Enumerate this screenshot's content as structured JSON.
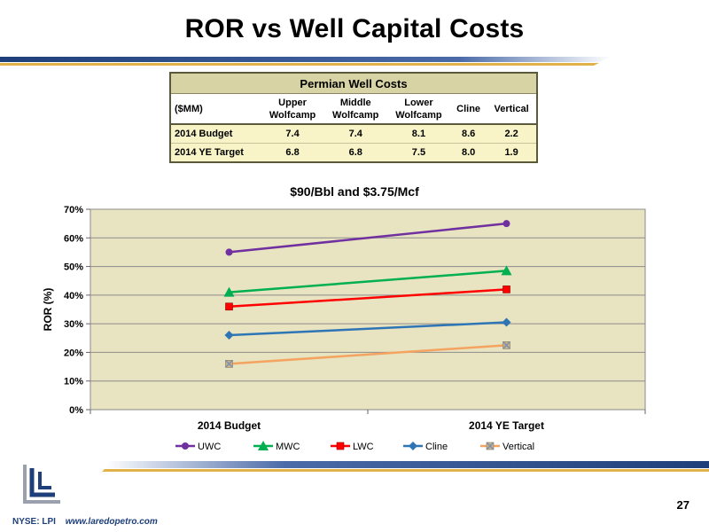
{
  "page": {
    "title": "ROR vs Well Capital Costs",
    "page_number": "27",
    "footer_ticker": "NYSE: LPI",
    "footer_url": "www.laredopetro.com"
  },
  "table": {
    "caption": "Permian Well Costs",
    "unit_label": "($MM)",
    "columns": [
      {
        "line1": "Upper",
        "line2": "Wolfcamp"
      },
      {
        "line1": "Middle",
        "line2": "Wolfcamp"
      },
      {
        "line1": "Lower",
        "line2": "Wolfcamp"
      },
      {
        "line1": "Cline",
        "line2": ""
      },
      {
        "line1": "Vertical",
        "line2": ""
      }
    ],
    "rows": [
      {
        "label": "2014 Budget",
        "values": [
          "7.4",
          "7.4",
          "8.1",
          "8.6",
          "2.2"
        ]
      },
      {
        "label": "2014 YE Target",
        "values": [
          "6.8",
          "6.8",
          "7.5",
          "8.0",
          "1.9"
        ]
      }
    ]
  },
  "chart_data": {
    "type": "line",
    "title": "$90/Bbl and $3.75/Mcf",
    "ylabel": "ROR (%)",
    "xlabel": "",
    "categories": [
      "2014 Budget",
      "2014 YE Target"
    ],
    "ylim": [
      0,
      70
    ],
    "yticks": [
      0,
      10,
      20,
      30,
      40,
      50,
      60,
      70
    ],
    "ytick_labels": [
      "0%",
      "10%",
      "20%",
      "30%",
      "40%",
      "50%",
      "60%",
      "70%"
    ],
    "grid": true,
    "legend": "bottom",
    "series": [
      {
        "name": "UWC",
        "values": [
          55,
          65
        ],
        "color": "#7030a0",
        "marker": "circle"
      },
      {
        "name": "MWC",
        "values": [
          41,
          48.5
        ],
        "color": "#00b050",
        "marker": "triangle"
      },
      {
        "name": "LWC",
        "values": [
          36,
          42
        ],
        "color": "#ff0000",
        "marker": "square"
      },
      {
        "name": "Cline",
        "values": [
          26,
          30.5
        ],
        "color": "#2e75b6",
        "marker": "diamond"
      },
      {
        "name": "Vertical",
        "values": [
          16,
          22.5
        ],
        "color": "#f4a460",
        "marker": "x"
      }
    ],
    "plot_bg": "#e8e3c0"
  }
}
